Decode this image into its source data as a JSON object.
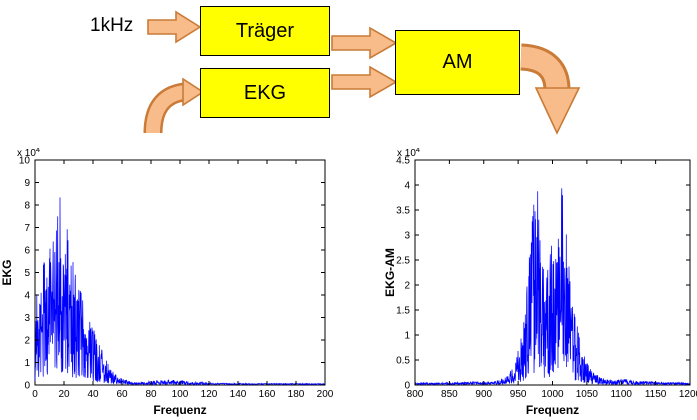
{
  "diagram": {
    "input_label": "1kHz",
    "blocks": {
      "traeger": "Träger",
      "ekg": "EKG",
      "am": "AM"
    },
    "colors": {
      "box_fill": "#FFFF00",
      "box_border": "#000000",
      "arrow_fill": "#F7BC8A",
      "arrow_stroke": "#C97B37",
      "line_color": "#0000FF"
    }
  },
  "chart_data": [
    {
      "type": "line",
      "title": "",
      "xlabel": "Frequenz",
      "ylabel": "EKG",
      "xlim": [
        0,
        200
      ],
      "ylim": [
        0,
        10
      ],
      "y_unit_scale": "x 10",
      "y_unit_exponent": "4",
      "xticks": [
        0,
        20,
        40,
        60,
        80,
        100,
        120,
        140,
        160,
        180,
        200
      ],
      "yticks": [
        0,
        1,
        2,
        3,
        4,
        5,
        6,
        7,
        8,
        9,
        10
      ],
      "grid": false,
      "legend": null,
      "line_color": "#0000FF",
      "description": "Noisy EKG magnitude spectrum concentrated below 60 Hz, peak ~8.7e4 near 17 Hz, small noise bump 80-110 Hz",
      "envelope": [
        [
          0,
          0.15
        ],
        [
          1,
          5.3
        ],
        [
          2,
          3.0
        ],
        [
          4,
          4.6
        ],
        [
          6,
          5.6
        ],
        [
          8,
          5.0
        ],
        [
          10,
          6.2
        ],
        [
          13,
          6.6
        ],
        [
          15,
          7.2
        ],
        [
          17,
          8.7
        ],
        [
          19,
          6.9
        ],
        [
          21,
          7.4
        ],
        [
          24,
          6.2
        ],
        [
          27,
          5.4
        ],
        [
          30,
          4.8
        ],
        [
          33,
          4.0
        ],
        [
          36,
          3.3
        ],
        [
          40,
          2.6
        ],
        [
          44,
          1.9
        ],
        [
          48,
          1.25
        ],
        [
          52,
          0.75
        ],
        [
          56,
          0.45
        ],
        [
          60,
          0.28
        ],
        [
          66,
          0.16
        ],
        [
          72,
          0.12
        ],
        [
          80,
          0.18
        ],
        [
          88,
          0.22
        ],
        [
          96,
          0.22
        ],
        [
          104,
          0.18
        ],
        [
          112,
          0.14
        ],
        [
          120,
          0.1
        ],
        [
          135,
          0.08
        ],
        [
          150,
          0.07
        ],
        [
          170,
          0.07
        ],
        [
          200,
          0.06
        ]
      ]
    },
    {
      "type": "line",
      "title": "",
      "xlabel": "Frequenz",
      "ylabel": "EKG-AM",
      "xlim": [
        800,
        1200
      ],
      "ylim": [
        0,
        4.5
      ],
      "y_unit_scale": "x 10",
      "y_unit_exponent": "4",
      "xticks": [
        800,
        850,
        900,
        950,
        1000,
        1050,
        1100,
        1150,
        1200
      ],
      "yticks": [
        0,
        0.5,
        1,
        1.5,
        2,
        2.5,
        3,
        3.5,
        4,
        4.5
      ],
      "grid": false,
      "legend": null,
      "line_color": "#0000FF",
      "description": "AM-modulated EKG spectrum: sidebands around 1 kHz carrier, twin peak clusters ~4.3e4 near 976 Hz and 1012 Hz, near-zero floor elsewhere",
      "envelope": [
        [
          800,
          0.05
        ],
        [
          850,
          0.05
        ],
        [
          880,
          0.06
        ],
        [
          905,
          0.07
        ],
        [
          920,
          0.09
        ],
        [
          935,
          0.18
        ],
        [
          945,
          0.45
        ],
        [
          952,
          0.8
        ],
        [
          958,
          1.3
        ],
        [
          963,
          2.0
        ],
        [
          968,
          3.0
        ],
        [
          972,
          3.8
        ],
        [
          976,
          4.35
        ],
        [
          980,
          3.7
        ],
        [
          984,
          2.9
        ],
        [
          988,
          2.3
        ],
        [
          992,
          2.2
        ],
        [
          996,
          2.6
        ],
        [
          1000,
          3.0
        ],
        [
          1004,
          2.7
        ],
        [
          1008,
          3.3
        ],
        [
          1012,
          4.3
        ],
        [
          1016,
          3.7
        ],
        [
          1020,
          3.1
        ],
        [
          1024,
          2.5
        ],
        [
          1028,
          2.0
        ],
        [
          1033,
          1.5
        ],
        [
          1038,
          1.05
        ],
        [
          1044,
          0.7
        ],
        [
          1050,
          0.45
        ],
        [
          1058,
          0.28
        ],
        [
          1068,
          0.16
        ],
        [
          1080,
          0.11
        ],
        [
          1092,
          0.1
        ],
        [
          1105,
          0.12
        ],
        [
          1118,
          0.09
        ],
        [
          1140,
          0.07
        ],
        [
          1170,
          0.05
        ],
        [
          1200,
          0.05
        ]
      ]
    }
  ]
}
